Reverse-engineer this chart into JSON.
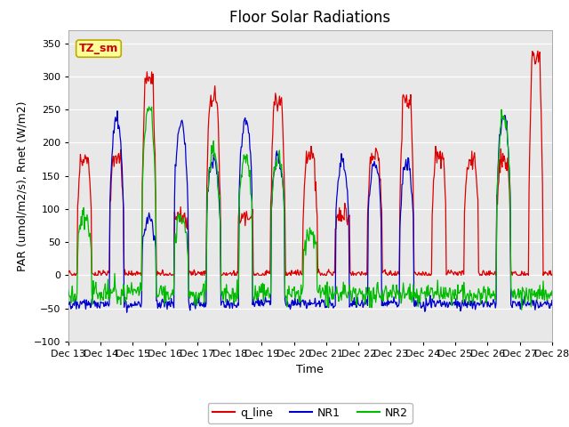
{
  "title": "Floor Solar Radiations",
  "ylabel": "PAR (umol/m2/s), Rnet (W/m2)",
  "xlabel": "Time",
  "ylim": [
    -100,
    370
  ],
  "yticks": [
    -100,
    -50,
    0,
    50,
    100,
    150,
    200,
    250,
    300,
    350
  ],
  "xtick_labels": [
    "Dec 13",
    "Dec 14",
    "Dec 15",
    "Dec 16",
    "Dec 17",
    "Dec 18",
    "Dec 19",
    "Dec 20",
    "Dec 21",
    "Dec 22",
    "Dec 23",
    "Dec 24",
    "Dec 25",
    "Dec 26",
    "Dec 27",
    "Dec 28"
  ],
  "legend_entries": [
    "q_line",
    "NR1",
    "NR2"
  ],
  "line_colors": [
    "#dd0000",
    "#0000cc",
    "#00bb00"
  ],
  "plot_bg_color": "#e8e8e8",
  "fig_bg_color": "#ffffff",
  "annotation_text": "TZ_sm",
  "annotation_color": "#cc0000",
  "annotation_bg": "#ffff99",
  "annotation_border": "#bbaa00",
  "grid_color": "#ffffff",
  "title_fontsize": 12,
  "axis_label_fontsize": 9,
  "tick_fontsize": 8
}
